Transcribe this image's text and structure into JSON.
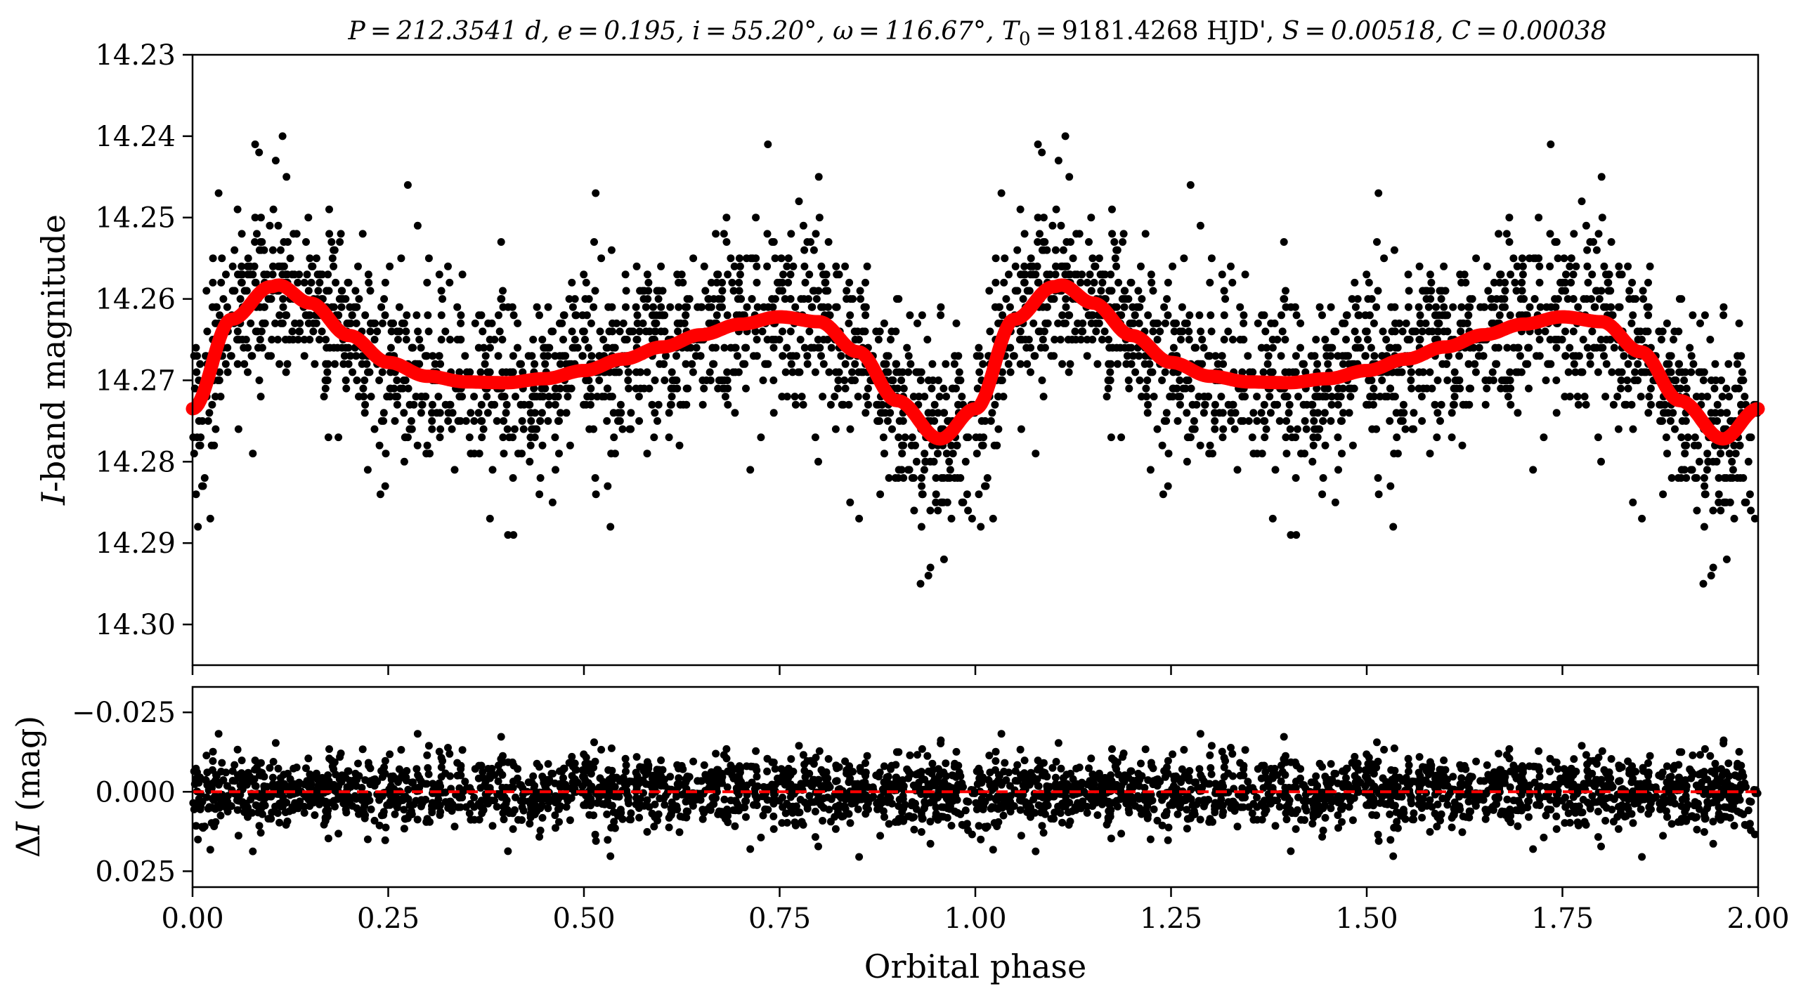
{
  "chart_data": [
    {
      "panel": "light-curve",
      "type": "scatter",
      "title": "P = 212.3541 d, e = 0.195, i = 55.20°, ω = 116.67°, T0 = 9181.4268 HJD', S = 0.00518, C = 0.00038",
      "title_parts": {
        "period": "P = 212.3541 d, ",
        "ecc": "e = 0.195, ",
        "incl": "i = 55.20°, ",
        "omega": "ω = 116.67°, ",
        "t0_symbol": "T",
        "t0_sub": "0",
        "t0_value": " = 9181.4268 HJD', ",
        "s_param": "S = 0.00518, ",
        "c_param": "C = 0.00038"
      },
      "xlabel": "",
      "ylabel": "I-band magnitude",
      "ylabel_symbol": "I",
      "ylabel_rest": "-band magnitude",
      "xlim": [
        0,
        2
      ],
      "ylim": [
        14.305,
        14.23
      ],
      "y_inverted": true,
      "yticks": [
        {
          "v": 14.23,
          "label": "14.23"
        },
        {
          "v": 14.24,
          "label": "14.24"
        },
        {
          "v": 14.25,
          "label": "14.25"
        },
        {
          "v": 14.26,
          "label": "14.26"
        },
        {
          "v": 14.27,
          "label": "14.27"
        },
        {
          "v": 14.28,
          "label": "14.28"
        },
        {
          "v": 14.29,
          "label": "14.29"
        },
        {
          "v": 14.3,
          "label": "14.30"
        }
      ],
      "xticks": [
        0,
        0.25,
        0.5,
        0.75,
        1.0,
        1.25,
        1.5,
        1.75,
        2.0
      ],
      "grid": false,
      "series": [
        {
          "kind": "points",
          "color": "#000000",
          "description_of_distribution": "~2000 observations per phase cycle scattered about the model with sigma about 0.006 mag",
          "notable_points": [
            {
              "x": 0.08,
              "y": 14.241
            },
            {
              "x": 0.085,
              "y": 14.242
            },
            {
              "x": 0.115,
              "y": 14.24
            },
            {
              "x": 0.12,
              "y": 14.245
            },
            {
              "x": 0.275,
              "y": 14.246
            },
            {
              "x": 0.515,
              "y": 14.247
            },
            {
              "x": 0.735,
              "y": 14.241
            },
            {
              "x": 0.8,
              "y": 14.245
            },
            {
              "x": 0.93,
              "y": 14.295
            },
            {
              "x": 0.94,
              "y": 14.294
            },
            {
              "x": 0.96,
              "y": 14.292
            },
            {
              "x": 0.41,
              "y": 14.289
            },
            {
              "x": 0.38,
              "y": 14.287
            },
            {
              "x": 0.84,
              "y": 14.285
            },
            {
              "x": 0.46,
              "y": 14.285
            },
            {
              "x": 0.24,
              "y": 14.284
            }
          ]
        },
        {
          "kind": "model-curve",
          "color": "#ff0000",
          "x": [
            0.0,
            0.05,
            0.1,
            0.11,
            0.15,
            0.2,
            0.25,
            0.3,
            0.35,
            0.4,
            0.45,
            0.5,
            0.55,
            0.6,
            0.65,
            0.7,
            0.75,
            0.8,
            0.85,
            0.9,
            0.955,
            1.0,
            1.05,
            1.1,
            1.11,
            1.15,
            1.2,
            1.25,
            1.3,
            1.35,
            1.4,
            1.45,
            1.5,
            1.55,
            1.6,
            1.65,
            1.7,
            1.75,
            1.8,
            1.85,
            1.9,
            1.955,
            2.0
          ],
          "y": [
            14.2735,
            14.2625,
            14.2585,
            14.2583,
            14.2605,
            14.2645,
            14.2678,
            14.2695,
            14.2702,
            14.2703,
            14.2698,
            14.2688,
            14.2674,
            14.2659,
            14.2644,
            14.2631,
            14.2622,
            14.2628,
            14.2665,
            14.2725,
            14.2772,
            14.2735,
            14.2625,
            14.2585,
            14.2583,
            14.2605,
            14.2645,
            14.2678,
            14.2695,
            14.2702,
            14.2703,
            14.2698,
            14.2688,
            14.2674,
            14.2659,
            14.2644,
            14.2631,
            14.2622,
            14.2628,
            14.2665,
            14.2725,
            14.2772,
            14.2735
          ]
        }
      ]
    },
    {
      "panel": "residuals",
      "type": "scatter",
      "xlabel": "Orbital phase",
      "ylabel": "ΔI (mag)",
      "ylabel_delta": "Δ",
      "ylabel_symbol": "I",
      "ylabel_rest": " (mag)",
      "xlim": [
        0,
        2
      ],
      "ylim": [
        0.03,
        -0.033
      ],
      "y_inverted": true,
      "yticks": [
        {
          "v": -0.025,
          "label": "−0.025"
        },
        {
          "v": 0.0,
          "label": "0.000"
        },
        {
          "v": 0.025,
          "label": "0.025"
        }
      ],
      "xticks": [
        {
          "v": 0.0,
          "label": "0.00"
        },
        {
          "v": 0.25,
          "label": "0.25"
        },
        {
          "v": 0.5,
          "label": "0.50"
        },
        {
          "v": 0.75,
          "label": "0.75"
        },
        {
          "v": 1.0,
          "label": "1.00"
        },
        {
          "v": 1.25,
          "label": "1.25"
        },
        {
          "v": 1.5,
          "label": "1.50"
        },
        {
          "v": 1.75,
          "label": "1.75"
        },
        {
          "v": 2.0,
          "label": "2.00"
        }
      ],
      "grid": false,
      "series": [
        {
          "kind": "points",
          "color": "#000000",
          "description_of_distribution": "residuals scattered about zero with sigma about 0.006 mag, extremes near ±0.02"
        },
        {
          "kind": "zero-line",
          "color": "#ff0000",
          "style": "dashed",
          "y": 0.0
        }
      ]
    }
  ]
}
